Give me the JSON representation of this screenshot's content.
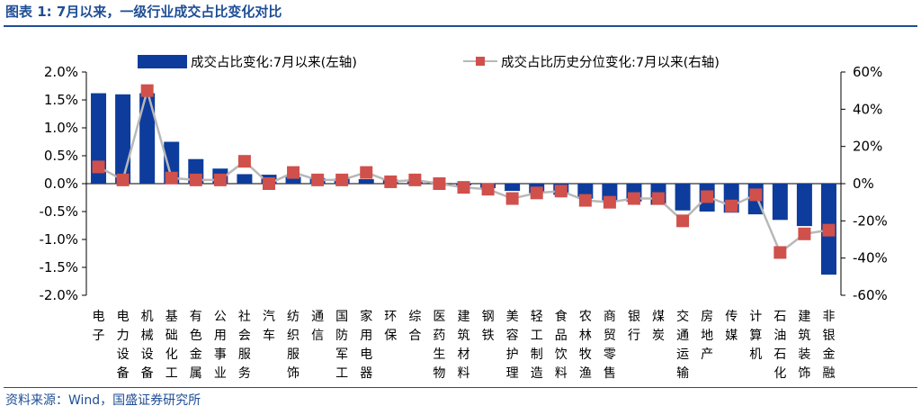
{
  "header": {
    "title": "图表 1:  7月以来，一级行业成交占比变化对比"
  },
  "footer": {
    "source": "资料来源：Wind，国盛证券研究所"
  },
  "colors": {
    "bar": "#0d3c9c",
    "marker": "#d0504c",
    "line": "#b8b8b8",
    "accent": "#1f4e96"
  },
  "chart_data": {
    "type": "bar",
    "categories": [
      "电子",
      "电力设备",
      "机械设备",
      "基础化工",
      "有色金属",
      "公用事业",
      "社会服务",
      "汽车",
      "纺织服饰",
      "通信",
      "国防军工",
      "家用电器",
      "环保",
      "综合",
      "医药生物",
      "建筑材料",
      "钢铁",
      "美容护理",
      "轻工制造",
      "食品饮料",
      "农林牧渔",
      "商贸零售",
      "银行",
      "煤炭",
      "交通运输",
      "房地产",
      "传媒",
      "计算机",
      "石油石化",
      "建筑装饰",
      "非银金融"
    ],
    "series": [
      {
        "name": "成交占比变化:7月以来(左轴)",
        "type": "bar",
        "axis": "left",
        "values": [
          1.62,
          1.6,
          1.62,
          0.75,
          0.44,
          0.27,
          0.17,
          0.16,
          0.12,
          0.1,
          0.09,
          0.08,
          0.07,
          0.05,
          0.0,
          -0.03,
          -0.08,
          -0.13,
          -0.17,
          -0.2,
          -0.27,
          -0.3,
          -0.32,
          -0.38,
          -0.48,
          -0.5,
          -0.52,
          -0.55,
          -0.65,
          -0.76,
          -1.63
        ]
      },
      {
        "name": "成交占比历史分位变化:7月以来(右轴)",
        "type": "line",
        "axis": "right",
        "values": [
          9,
          2,
          50,
          3,
          2,
          2,
          12,
          0,
          6,
          2,
          2,
          6,
          1,
          2,
          0,
          -2,
          -3,
          -8,
          -5,
          -4,
          -9,
          -10,
          -8,
          -8,
          -20,
          -7,
          -12,
          -6,
          -37,
          -27,
          -25
        ]
      }
    ],
    "y_left": {
      "ylim": [
        -2.0,
        2.0
      ],
      "ticks": [
        "2.0%",
        "1.5%",
        "1.0%",
        "0.5%",
        "0.0%",
        "-0.5%",
        "-1.0%",
        "-1.5%",
        "-2.0%"
      ]
    },
    "y_right": {
      "ylim": [
        -60,
        60
      ],
      "ticks": [
        "60%",
        "40%",
        "20%",
        "0%",
        "-20%",
        "-40%",
        "-60%"
      ]
    },
    "legend": "top",
    "grid": false
  }
}
